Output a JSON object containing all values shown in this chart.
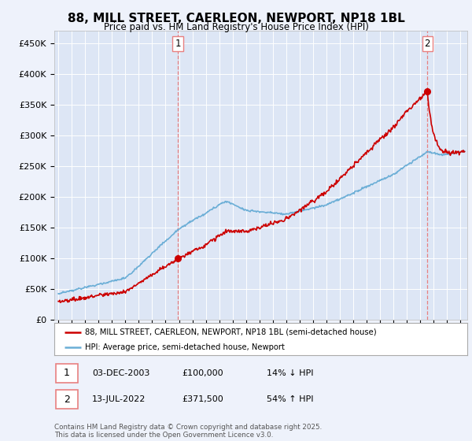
{
  "title": "88, MILL STREET, CAERLEON, NEWPORT, NP18 1BL",
  "subtitle": "Price paid vs. HM Land Registry's House Price Index (HPI)",
  "ylabel_ticks": [
    "£0",
    "£50K",
    "£100K",
    "£150K",
    "£200K",
    "£250K",
    "£300K",
    "£350K",
    "£400K",
    "£450K"
  ],
  "ytick_values": [
    0,
    50000,
    100000,
    150000,
    200000,
    250000,
    300000,
    350000,
    400000,
    450000
  ],
  "ylim": [
    0,
    470000
  ],
  "xlim_start": 1994.7,
  "xlim_end": 2025.5,
  "sale1_date": 2003.92,
  "sale1_price": 100000,
  "sale1_label": "1",
  "sale2_date": 2022.53,
  "sale2_price": 371500,
  "sale2_label": "2",
  "hpi_color": "#6baed6",
  "price_color": "#cc0000",
  "vline_color": "#e88080",
  "background_color": "#eef2fb",
  "plot_bg_color": "#dde6f5",
  "grid_color": "#ffffff",
  "legend_entry1": "88, MILL STREET, CAERLEON, NEWPORT, NP18 1BL (semi-detached house)",
  "legend_entry2": "HPI: Average price, semi-detached house, Newport",
  "annotation1_date": "03-DEC-2003",
  "annotation1_price": "£100,000",
  "annotation1_hpi": "14% ↓ HPI",
  "annotation2_date": "13-JUL-2022",
  "annotation2_price": "£371,500",
  "annotation2_hpi": "54% ↑ HPI",
  "footer": "Contains HM Land Registry data © Crown copyright and database right 2025.\nThis data is licensed under the Open Government Licence v3.0."
}
